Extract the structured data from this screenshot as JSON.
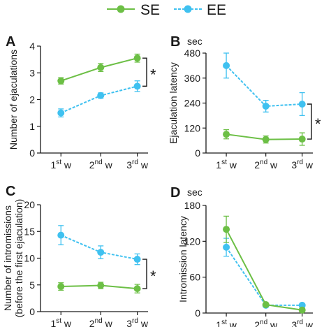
{
  "colors": {
    "SE": "#6cbf45",
    "EE": "#3fc1f0",
    "axis": "#1a1a1a"
  },
  "legend": [
    {
      "name": "SE",
      "style": "solid",
      "color": "#6cbf45"
    },
    {
      "name": "EE",
      "style": "dashed",
      "color": "#3fc1f0"
    }
  ],
  "chart_data": [
    {
      "panel": "A",
      "type": "line",
      "unit": "",
      "ylabel": "Number of ejaculations",
      "categories": [
        [
          "1",
          "st",
          " w"
        ],
        [
          "2",
          "nd",
          " w"
        ],
        [
          "3",
          "rd",
          " w"
        ]
      ],
      "ylim": [
        0,
        4
      ],
      "yticks": [
        "0",
        "1",
        "2",
        "3",
        "4"
      ],
      "series": [
        {
          "name": "SE",
          "values": [
            2.7,
            3.2,
            3.55
          ],
          "err": [
            0.12,
            0.15,
            0.15
          ]
        },
        {
          "name": "EE",
          "values": [
            1.5,
            2.15,
            2.5
          ],
          "err": [
            0.15,
            0.1,
            0.2
          ]
        }
      ],
      "significance": {
        "label": "*",
        "between": [
          "SE",
          "EE"
        ]
      }
    },
    {
      "panel": "B",
      "type": "line",
      "unit": "sec",
      "ylabel": "Ejaculation latency",
      "categories": [
        [
          "1",
          "st",
          " w"
        ],
        [
          "2",
          "nd",
          " w"
        ],
        [
          "3",
          "rd",
          " w"
        ]
      ],
      "ylim": [
        0,
        480
      ],
      "yticks": [
        "0",
        "120",
        "240",
        "360",
        "480"
      ],
      "series": [
        {
          "name": "SE",
          "values": [
            90,
            65,
            67
          ],
          "err": [
            22,
            17,
            30
          ]
        },
        {
          "name": "EE",
          "values": [
            420,
            225,
            235
          ],
          "err": [
            60,
            28,
            55
          ]
        }
      ],
      "significance": {
        "label": "*",
        "between": [
          "SE",
          "EE"
        ]
      }
    },
    {
      "panel": "C",
      "type": "line",
      "unit": "",
      "ylabel": [
        "Number of intromissions",
        "(before the first ejaculation)"
      ],
      "categories": [
        [
          "1",
          "st",
          " w"
        ],
        [
          "2",
          "nd",
          " w"
        ],
        [
          "3",
          "rd",
          " w"
        ]
      ],
      "ylim": [
        0,
        20
      ],
      "yticks": [
        "0",
        "5",
        "10",
        "15",
        "20"
      ],
      "series": [
        {
          "name": "SE",
          "values": [
            4.7,
            4.9,
            4.3
          ],
          "err": [
            0.7,
            0.6,
            0.8
          ]
        },
        {
          "name": "EE",
          "values": [
            14.3,
            11.1,
            9.8
          ],
          "err": [
            1.8,
            1.2,
            1.0
          ]
        }
      ],
      "significance": {
        "label": "*",
        "between": [
          "SE",
          "EE"
        ]
      }
    },
    {
      "panel": "D",
      "type": "line",
      "unit": "sec",
      "ylabel": "Intromission latency",
      "categories": [
        [
          "1",
          "st",
          " w"
        ],
        [
          "2",
          "nd",
          " w"
        ],
        [
          "3",
          "rd",
          " w"
        ]
      ],
      "ylim": [
        0,
        180
      ],
      "yticks": [
        "0",
        "60",
        "120",
        "180"
      ],
      "series": [
        {
          "name": "SE",
          "values": [
            140,
            14,
            5
          ],
          "err": [
            22,
            3,
            3
          ]
        },
        {
          "name": "EE",
          "values": [
            110,
            13,
            13
          ],
          "err": [
            15,
            3,
            3
          ]
        }
      ],
      "significance": null
    }
  ]
}
